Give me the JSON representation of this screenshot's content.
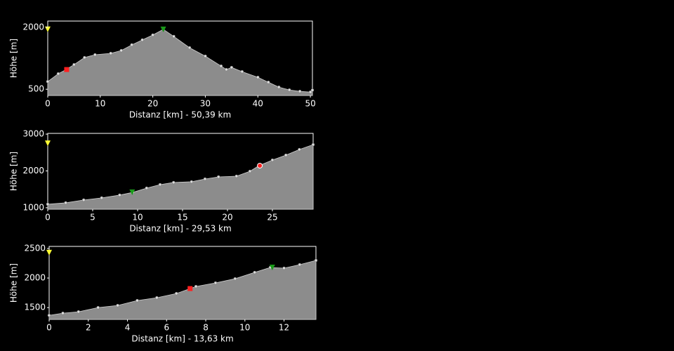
{
  "chart_data": [
    {
      "type": "area",
      "xlabel": "Distanz [km] - 50,39 km",
      "ylabel": "Höhe [m]",
      "x": [
        0,
        2,
        3.5,
        5,
        7,
        9,
        12,
        14,
        16,
        18,
        20,
        22,
        24,
        27,
        30,
        33,
        34,
        35,
        37,
        40,
        42,
        44,
        46,
        48,
        50,
        50.39
      ],
      "values": [
        687,
        875,
        977,
        1096,
        1267,
        1335,
        1369,
        1437,
        1574,
        1693,
        1812,
        1949,
        1778,
        1505,
        1301,
        1062,
        977,
        1028,
        926,
        789,
        670,
        551,
        483,
        449,
        432,
        480
      ],
      "color": "#8c8c8c",
      "xlim": [
        0,
        50.39
      ],
      "xticks": [
        0,
        10,
        20,
        30,
        40,
        50
      ],
      "ylim": [
        350,
        2150
      ],
      "yticks": [
        500,
        2000
      ],
      "markers": [
        {
          "shape": "triangle",
          "color": "#ffff33",
          "x": 0,
          "y": 1950
        },
        {
          "shape": "square",
          "color": "#ff2020",
          "x": 3.6,
          "y": 977
        },
        {
          "shape": "triangle",
          "color": "#1a9a1a",
          "x": 22,
          "y": 1949
        }
      ]
    },
    {
      "type": "area",
      "xlabel": "Distanz [km] - 29,53 km",
      "ylabel": "Höhe [m]",
      "x": [
        0,
        2,
        4,
        6,
        8,
        9.5,
        11,
        12.5,
        14,
        16,
        17.5,
        19,
        21,
        22.5,
        23.5,
        25,
        26.5,
        28,
        29.53
      ],
      "values": [
        1095,
        1133,
        1210,
        1267,
        1343,
        1419,
        1533,
        1628,
        1686,
        1705,
        1781,
        1838,
        1857,
        1990,
        2143,
        2295,
        2428,
        2581,
        2714
      ],
      "color": "#8c8c8c",
      "xlim": [
        0,
        29.53
      ],
      "xticks": [
        0,
        5,
        10,
        15,
        20,
        25
      ],
      "ylim": [
        960,
        3020
      ],
      "yticks": [
        1000,
        2000,
        3000
      ],
      "markers": [
        {
          "shape": "triangle",
          "color": "#ffff33",
          "x": 0,
          "y": 2750
        },
        {
          "shape": "circle",
          "color": "#ff2020",
          "x": 23.6,
          "y": 2143
        },
        {
          "shape": "triangle",
          "color": "#1a9a1a",
          "x": 9.4,
          "y": 1419
        }
      ]
    },
    {
      "type": "area",
      "xlabel": "Distanz [km] - 13,63 km",
      "ylabel": "Höhe [m]",
      "x": [
        0,
        0.7,
        1.5,
        2.5,
        3.5,
        4.5,
        5.5,
        6.5,
        7.5,
        8.5,
        9.5,
        10.5,
        11.3,
        12,
        12.8,
        13.63
      ],
      "values": [
        1369,
        1405,
        1429,
        1500,
        1536,
        1619,
        1667,
        1738,
        1857,
        1917,
        1988,
        2095,
        2179,
        2167,
        2226,
        2298
      ],
      "color": "#8c8c8c",
      "xlim": [
        0,
        13.63
      ],
      "xticks": [
        0,
        2,
        4,
        6,
        8,
        10,
        12
      ],
      "ylim": [
        1300,
        2535
      ],
      "yticks": [
        1500,
        2000,
        2500
      ],
      "markers": [
        {
          "shape": "triangle",
          "color": "#ffff33",
          "x": 0,
          "y": 2430
        },
        {
          "shape": "square",
          "color": "#ff2020",
          "x": 7.2,
          "y": 1822
        },
        {
          "shape": "triangle",
          "color": "#1a9a1a",
          "x": 11.4,
          "y": 2179
        }
      ]
    }
  ]
}
